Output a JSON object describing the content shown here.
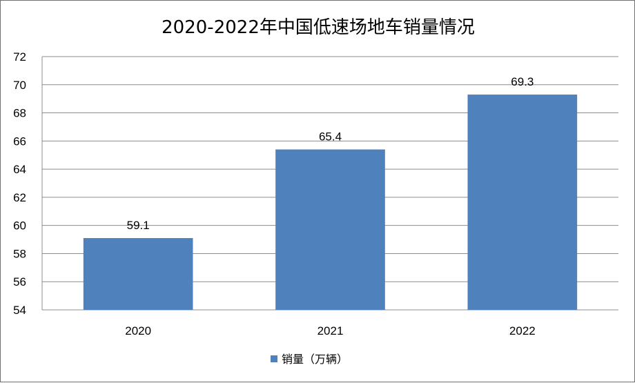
{
  "chart_data": {
    "type": "bar",
    "title": "2020-2022年中国低速场地车销量情况",
    "categories": [
      "2020",
      "2021",
      "2022"
    ],
    "series": [
      {
        "name": "销量（万辆）",
        "values": [
          59.1,
          65.4,
          69.3
        ],
        "color": "#4f81bd"
      }
    ],
    "ylim": [
      54,
      72
    ],
    "yticks": [
      "54",
      "56",
      "58",
      "60",
      "62",
      "64",
      "66",
      "68",
      "70",
      "72"
    ],
    "data_labels": [
      "59.1",
      "65.4",
      "69.3"
    ],
    "grid": true,
    "legend": "bottom"
  }
}
